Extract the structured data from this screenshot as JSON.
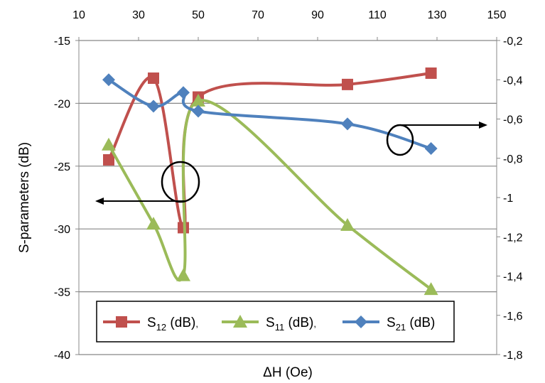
{
  "chart_data": {
    "type": "line",
    "title": "",
    "xlabel": "ΔH (Oe)",
    "ylabel_left": "S-parameters (dB)",
    "ylabel_right": "",
    "xlim": [
      10,
      150
    ],
    "x_ticks": [
      "10",
      "30",
      "50",
      "70",
      "90",
      "110",
      "130",
      "150"
    ],
    "ylim_left": [
      -40,
      -15
    ],
    "y_left_ticks": [
      "-40",
      "-35",
      "-30",
      "-25",
      "-20",
      "-15"
    ],
    "ylim_right": [
      -1.8,
      -0.2
    ],
    "y_right_ticks": [
      "-1,8",
      "-1,6",
      "-1,4",
      "-1,2",
      "-1",
      "-0,8",
      "-0,6",
      "-0,4",
      "-0,2"
    ],
    "grid": "horizontal",
    "legend_position": "bottom-center",
    "series": [
      {
        "name": "S12 (dB)",
        "legend_main": "S",
        "legend_sub": "12",
        "legend_rest": " (dB)",
        "legend_sep": ",",
        "axis": "left",
        "color": "#c0504d",
        "marker": "square",
        "x": [
          20,
          35,
          45,
          50,
          100,
          128
        ],
        "y": [
          -24.5,
          -18,
          -29.9,
          -19.5,
          -18.5,
          -17.6
        ]
      },
      {
        "name": "S11 (dB)",
        "legend_main": "S",
        "legend_sub": "11",
        "legend_rest": " (dB)",
        "legend_sep": ",",
        "axis": "left",
        "color": "#9bbb59",
        "marker": "triangle",
        "x": [
          20,
          35,
          45,
          50,
          100,
          128
        ],
        "y": [
          -23.3,
          -29.6,
          -33.7,
          -19.8,
          -29.7,
          -34.8
        ]
      },
      {
        "name": "S21 (dB)",
        "legend_main": "S",
        "legend_sub": "21",
        "legend_rest": " (dB)",
        "legend_sep": "",
        "axis": "right",
        "color": "#4f81bd",
        "marker": "diamond",
        "x": [
          20,
          35,
          45,
          50,
          100,
          128
        ],
        "y": [
          -0.4,
          -0.535,
          -0.465,
          -0.56,
          -0.625,
          -0.75
        ]
      }
    ]
  }
}
